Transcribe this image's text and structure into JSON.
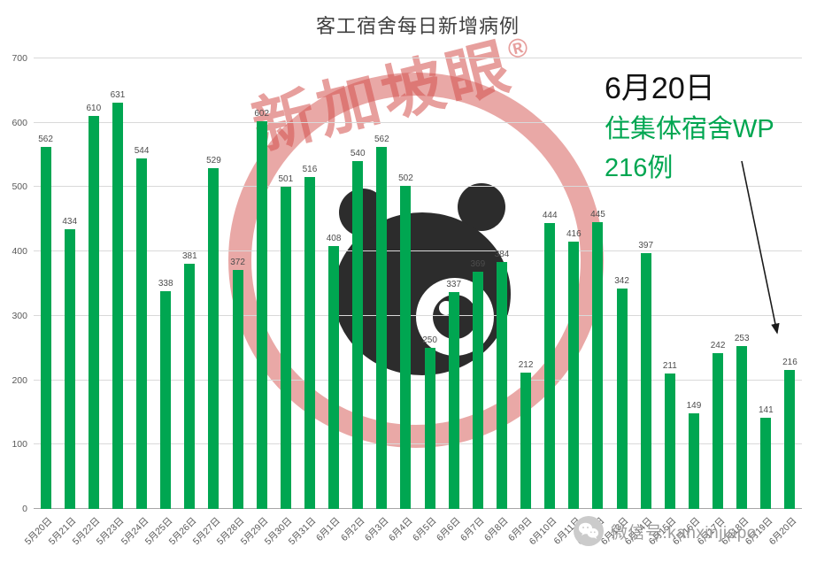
{
  "page": {
    "background": "#ffffff"
  },
  "chart_data": {
    "type": "bar",
    "title": "客工宿舍每日新增病例",
    "categories": [
      "5月20日",
      "5月21日",
      "5月22日",
      "5月23日",
      "5月24日",
      "5月25日",
      "5月26日",
      "5月27日",
      "5月28日",
      "5月29日",
      "5月30日",
      "5月31日",
      "6月1日",
      "6月2日",
      "6月3日",
      "6月4日",
      "6月5日",
      "6月6日",
      "6月7日",
      "6月8日",
      "6月9日",
      "6月10日",
      "6月11日",
      "6月12日",
      "6月13日",
      "6月14日",
      "6月15日",
      "6月16日",
      "6月17日",
      "6月18日",
      "6月19日",
      "6月20日"
    ],
    "values": [
      562,
      434,
      610,
      631,
      544,
      338,
      381,
      529,
      372,
      602,
      501,
      516,
      408,
      540,
      562,
      502,
      250,
      337,
      369,
      384,
      212,
      444,
      416,
      445,
      342,
      397,
      211,
      149,
      242,
      253,
      141,
      216
    ],
    "xlabel": "",
    "ylabel": "",
    "ylim": [
      0,
      700
    ],
    "ytick_interval": 100,
    "grid": true,
    "legend": "none",
    "bar_color": "#00a651",
    "value_labels": true
  },
  "annotation": {
    "line1": "6月20日",
    "line2": "住集体宿舍WP",
    "line3": "216例",
    "text_color": "#111111",
    "accent_color": "#00a651"
  },
  "watermark": {
    "text": "新加坡眼",
    "registered": "®",
    "color": "#d4514e"
  },
  "footer": {
    "wechat_label": "微信号:kanxinjiapo"
  }
}
